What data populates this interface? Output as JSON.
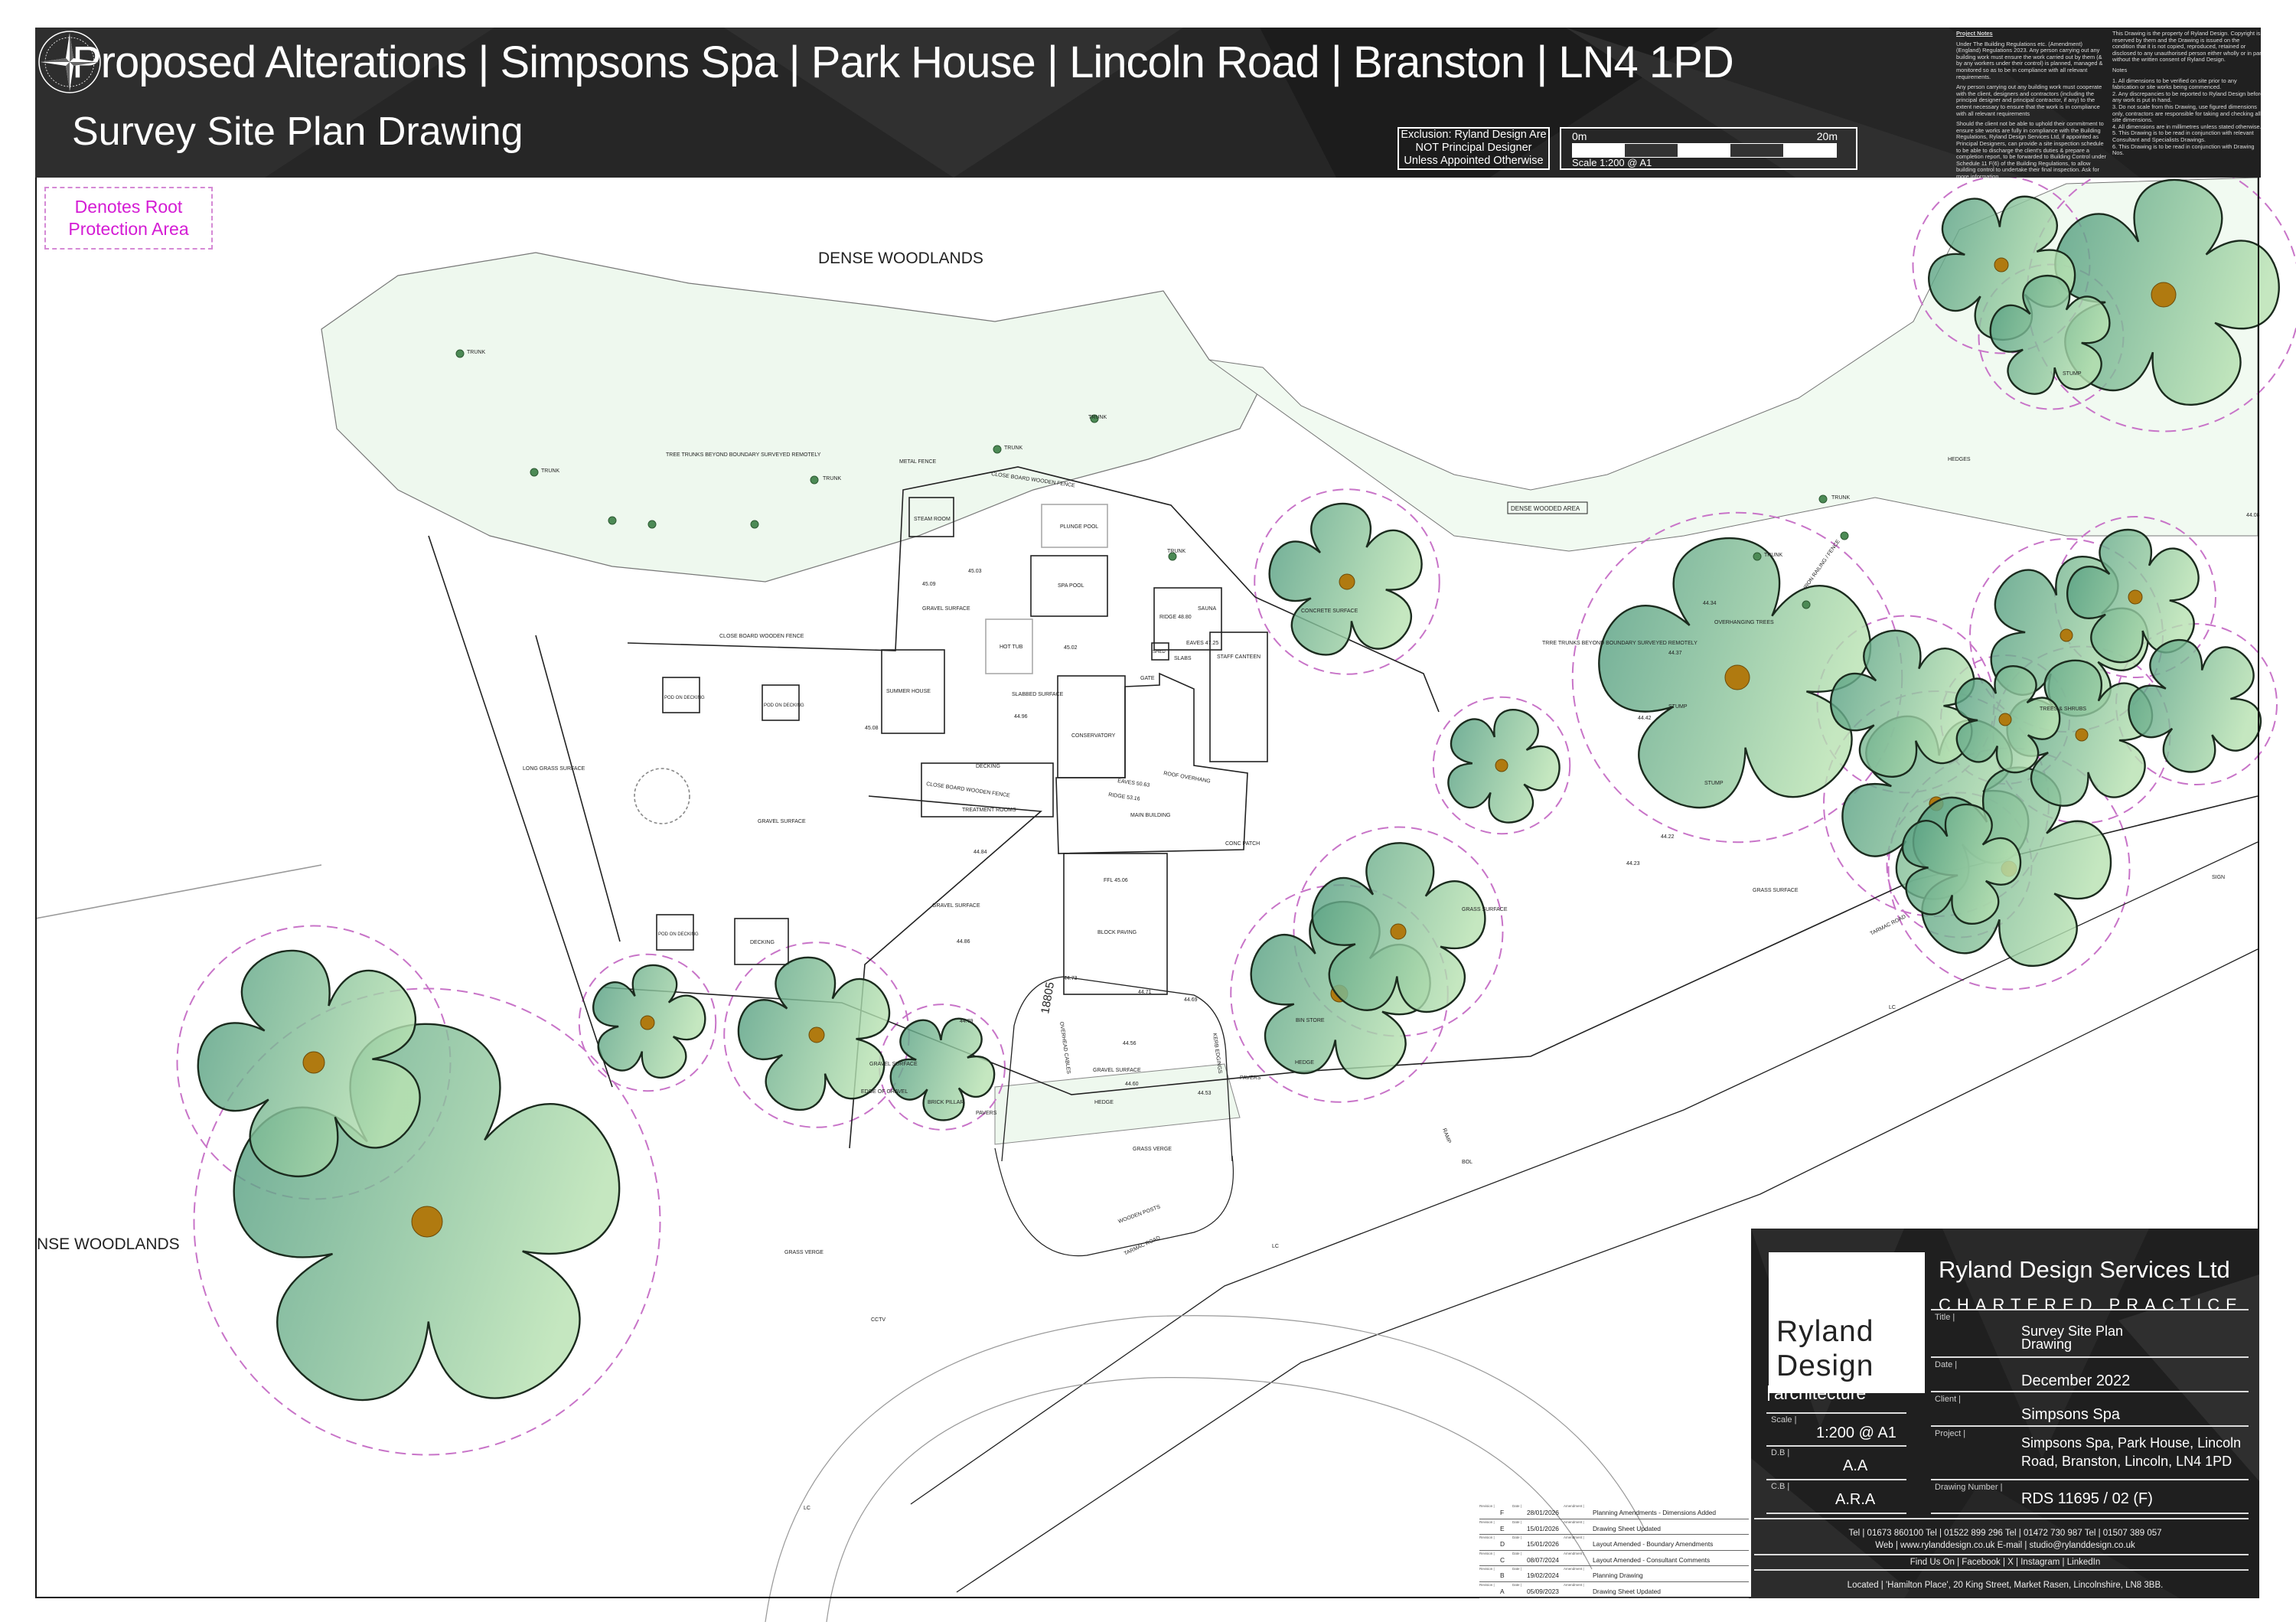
{
  "header": {
    "title": "Proposed Alterations | Simpsons Spa | Park House | Lincoln Road | Branston | LN4 1PD",
    "subtitle": "Survey Site Plan Drawing",
    "exclusion": [
      "Exclusion: Ryland Design Are",
      "NOT Principal Designer",
      "Unless Appointed Otherwise"
    ],
    "scale_bar": {
      "start": "0m",
      "end": "20m",
      "caption": "Scale 1:200 @ A1"
    },
    "compass_icon": "north-compass-icon"
  },
  "notes": {
    "heading": "Project Notes",
    "paragraphs": [
      "Under The Building Regulations etc. (Amendment) (England) Regulations 2023. Any person carrying out any building work must ensure the work carried out by them (& by any workers under their control) is planned, managed & monitored so as to be in compliance with all relevant requirements.",
      "Any person carrying out any building work must cooperate with the client, designers and contractors (including the principal designer and principal contractor, if any) to the extent necessary to ensure that the work is in compliance with all relevant requirements",
      "Should the client not be able to uphold their commitment to ensure site works are fully in compliance with the Building Regulations, Ryland Design Services Ltd, if appointed as Principal Designers, can provide a site inspection schedule to be able to discharge the client's duties & prepare a completion report, to be forwarded to Building Control under Schedule 11 F(6) of the Building Regulations, to allow building control to undertake their final inspection. Ask for more information."
    ],
    "copyright": "This Drawing is the property of Ryland Design. Copyright is reserved by them and the Drawing is issued on the condition that it is not copied, reproduced, retained or disclosed to any unauthorised person either wholly or in part without the written consent of Ryland Design.",
    "notes_heading": "Notes",
    "items": [
      "1.  All dimensions to be verified on site prior to any fabrication or site works being commenced.",
      "2.  Any discrepancies to be reported to Ryland Design before any work is put in hand.",
      "3.  Do not scale from this Drawing, use figured dimensions only, contractors are responsible for taking and checking all site dimensions.",
      "4.  All dimensions are in millimetres unless stated otherwise.",
      "5.  This Drawing is to be read in conjunction with relevant Consultant and Specialists Drawings.",
      "6.  This Drawing is to be read in conjunction with Drawing Nos."
    ]
  },
  "legend": {
    "line1": "Denotes Root",
    "line2": "Protection Area",
    "color": "#d41cd4"
  },
  "plan": {
    "colors": {
      "tree_dark": "#4f9a7e",
      "tree_light": "#b8e2b2",
      "trunk": "#b07a10",
      "woodland": "#eef8ee",
      "rpa": "#c874c8"
    },
    "labels": {
      "dense_woodlands": "DENSE WOODLANDS",
      "dense_woodlands_left": "NSE WOODLANDS",
      "dense_wooded_area": "DENSE WOODED AREA",
      "tree_trunks_beyond": "TREE TRUNKS BEYOND BOUNDARY SURVEYED REMOTELY",
      "tree_trunks_beyond_right": "TRRE TRUNKS BEYOND BOUNDARY SURVEYED REMOTELY",
      "trunk": "TRUNK",
      "metal_fence": "METAL FENCE",
      "close_board_fence": "CLOSE BOARD WOODEN FENCE",
      "steam_room": "STEAM ROOM",
      "plunge_pool": "PLUNGE POOL",
      "spa_pool": "SPA POOL",
      "gravel_surface": "GRAVEL SURFACE",
      "hot_tub": "HOT TUB",
      "sauna": "SAUNA",
      "shed": "SHED",
      "slabs": "SLABS",
      "gate": "GATE",
      "staff_canteen": "STAFF CANTEEN",
      "summer_house": "SUMMER HOUSE",
      "slabbed_surface": "SLABBED SURFACE",
      "conservatory": "CONSERVATORY",
      "decking": "DECKING",
      "treatment_rooms": "TREATMENT ROOMS",
      "main_building": "MAIN BUILDING",
      "roof_overhang": "ROOF OVERHANG",
      "eaves_1": "EAVES 50.63",
      "ridge_1": "RIDGE 53.16",
      "ridge_2": "RIDGE 48.80",
      "eaves_2": "EAVES 47.25",
      "conc_patch": "CONC PATCH",
      "block_paving": "BLOCK PAVING",
      "ffl": "FFL 45.06",
      "overhead_cables": "OVERHEAD CABLES",
      "kerb_edgings": "KERB EDGINGS",
      "hedge": "HEDGE",
      "pavers": "PAVERS",
      "brick_pillar": "BRICK PILLAR",
      "edge_of_gravel": "EDGE OF GRAVEL",
      "grass_verge": "GRASS VERGE",
      "grass_surface": "GRASS SURFACE",
      "tarmac_road": "TARMAC ROAD",
      "pod_decking": "POD ON DECKING",
      "long_grass": "LONG GRASS SURFACE",
      "bin_store": "BIN STORE",
      "trees_shrubs": "TREES & SHRUBS",
      "overhanging_trees": "OVERHANGING TREES",
      "iron_railing": "IRON RAILING / FENCE",
      "stump": "STUMP",
      "hedges": "HEDGES",
      "concrete_surface": "CONCRETE SURFACE",
      "sign": "SIGN",
      "bol": "BOL",
      "ramp": "RAMP",
      "dimension": "18805",
      "cctv": "CCTV",
      "lc": "LC",
      "wooden_posts": "WOODEN POSTS",
      "sl_1": "45.03",
      "sl_2": "45.09",
      "sl_3": "45.02",
      "sl_4": "44.96",
      "sl_5": "44.84",
      "sl_6": "44.86",
      "sl_7": "44.79",
      "sl_8": "44.73",
      "sl_9": "44.71",
      "sl_10": "44.69",
      "sl_11": "44.56",
      "sl_12": "44.60",
      "sl_13": "44.53",
      "sl_14": "45.08",
      "sl_15": "44.34",
      "sl_16": "44.37",
      "sl_17": "44.42",
      "sl_18": "44.23",
      "sl_19": "44.22",
      "sl_20": "44.08"
    }
  },
  "revisions": {
    "labels": {
      "revision": "Revision |",
      "date": "Date |",
      "amendment": "Amendment |"
    },
    "rows": [
      {
        "rev": "F",
        "date": "28/01/2026",
        "amendment": "Planning Amendments - Dimensions Added"
      },
      {
        "rev": "E",
        "date": "15/01/2026",
        "amendment": "Drawing Sheet Updated"
      },
      {
        "rev": "D",
        "date": "15/01/2026",
        "amendment": "Layout Amended - Boundary Amendments"
      },
      {
        "rev": "C",
        "date": "08/07/2024",
        "amendment": "Layout Amended - Consultant Comments"
      },
      {
        "rev": "B",
        "date": "19/02/2024",
        "amendment": "Planning Drawing"
      },
      {
        "rev": "A",
        "date": "05/09/2023",
        "amendment": "Drawing Sheet Updated"
      }
    ]
  },
  "title_block": {
    "logo": {
      "line1": "Ryland",
      "line2": "Design",
      "tagline": "architecture"
    },
    "company": "Ryland Design Services Ltd",
    "practice": "CHARTERED PRACTICE",
    "fields": {
      "title_label": "Title |",
      "title": "Survey Site Plan",
      "title2": "Drawing",
      "date_label": "Date |",
      "date": "December 2022",
      "client_label": "Client |",
      "client": "Simpsons Spa",
      "project_label": "Project |",
      "project": "Simpsons Spa, Park House, Lincoln",
      "project2": "Road, Branston, Lincoln, LN4 1PD",
      "drawing_label": "Drawing Number |",
      "drawing": "RDS 11695 / 02 (F)",
      "scale_label": "Scale |",
      "scale": "1:200 @ A1",
      "db_label": "D.B |",
      "db": "A.A",
      "cb_label": "C.B |",
      "cb": "A.R.A"
    },
    "contact": {
      "tel": "Tel | 01673 860100   Tel | 01522 899 296   Tel | 01472 730 987   Tel | 01507 389 057",
      "web": "Web | www.rylanddesign.co.uk   E-mail | studio@rylanddesign.co.uk",
      "social": "Find Us On | Facebook | X | Instagram | LinkedIn",
      "located": "Located | 'Hamilton Place', 20 King Street, Market Rasen, Lincolnshire, LN8 3BB."
    }
  }
}
